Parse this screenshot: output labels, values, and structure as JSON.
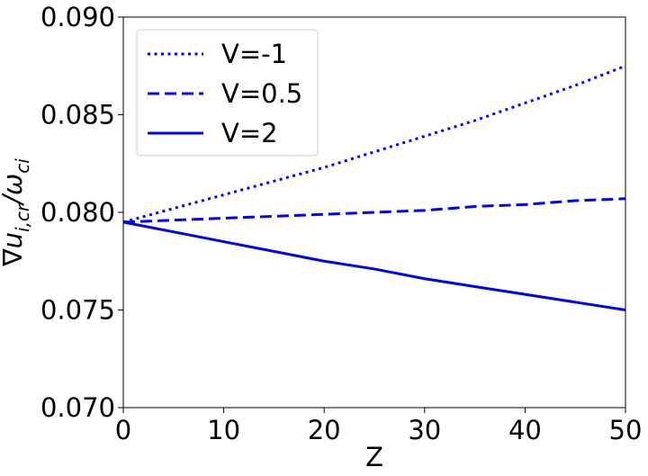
{
  "chart_data": {
    "type": "line",
    "title": "",
    "xlabel": "Z",
    "ylabel": "∇u_{i,cr}/ω_{ci}",
    "xlim": [
      0,
      50
    ],
    "ylim": [
      0.07,
      0.09
    ],
    "xticks": [
      0,
      10,
      20,
      30,
      40,
      50
    ],
    "xtick_labels": [
      "0",
      "10",
      "20",
      "30",
      "40",
      "50"
    ],
    "yticks": [
      0.07,
      0.075,
      0.08,
      0.085,
      0.09
    ],
    "ytick_labels": [
      "0.070",
      "0.075",
      "0.080",
      "0.085",
      "0.090"
    ],
    "grid": false,
    "legend_position": "top-left",
    "x": [
      0,
      5,
      10,
      15,
      20,
      25,
      30,
      35,
      40,
      45,
      50
    ],
    "series": [
      {
        "name": "V=-1",
        "style": "dotted",
        "color": "#0000ff",
        "values": [
          0.0795,
          0.0802,
          0.0809,
          0.0816,
          0.0823,
          0.0831,
          0.0839,
          0.0847,
          0.0856,
          0.0865,
          0.0875
        ]
      },
      {
        "name": "V=0.5",
        "style": "dashed",
        "color": "#0000ff",
        "values": [
          0.0795,
          0.0796,
          0.0797,
          0.0798,
          0.0799,
          0.08,
          0.0801,
          0.0803,
          0.0804,
          0.0806,
          0.0807
        ]
      },
      {
        "name": "V=2",
        "style": "solid",
        "color": "#0000ff",
        "values": [
          0.0795,
          0.079,
          0.0785,
          0.078,
          0.0775,
          0.0771,
          0.0766,
          0.0762,
          0.0758,
          0.0754,
          0.075
        ]
      }
    ]
  }
}
